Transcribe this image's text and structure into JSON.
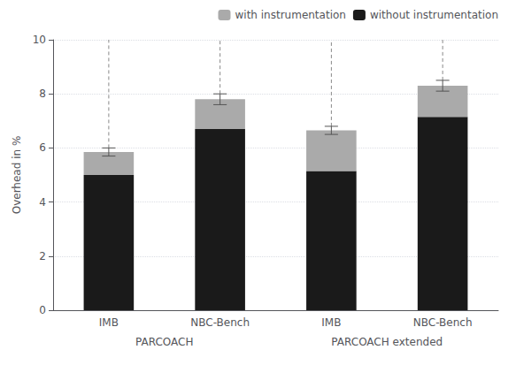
{
  "chart_data": {
    "type": "bar",
    "stacked": true,
    "ylabel": "Overhead in %",
    "categories": [
      "IMB",
      "NBC-Bench",
      "IMB",
      "NBC-Bench"
    ],
    "groups": [
      "PARCOACH",
      "PARCOACH extended"
    ],
    "series": [
      {
        "name": "without instrumentation",
        "color": "#1a1a1a",
        "values": [
          5.0,
          6.7,
          5.15,
          7.15
        ]
      },
      {
        "name": "with instrumentation",
        "color": "#aaaaaa",
        "values": [
          0.85,
          1.1,
          1.5,
          1.15
        ],
        "errors": [
          0.15,
          0.2,
          0.15,
          0.2
        ]
      }
    ],
    "ylim": [
      0,
      10
    ],
    "yticks": [
      0,
      2,
      4,
      6,
      8,
      10
    ],
    "grid": true,
    "legend": "upper right"
  }
}
